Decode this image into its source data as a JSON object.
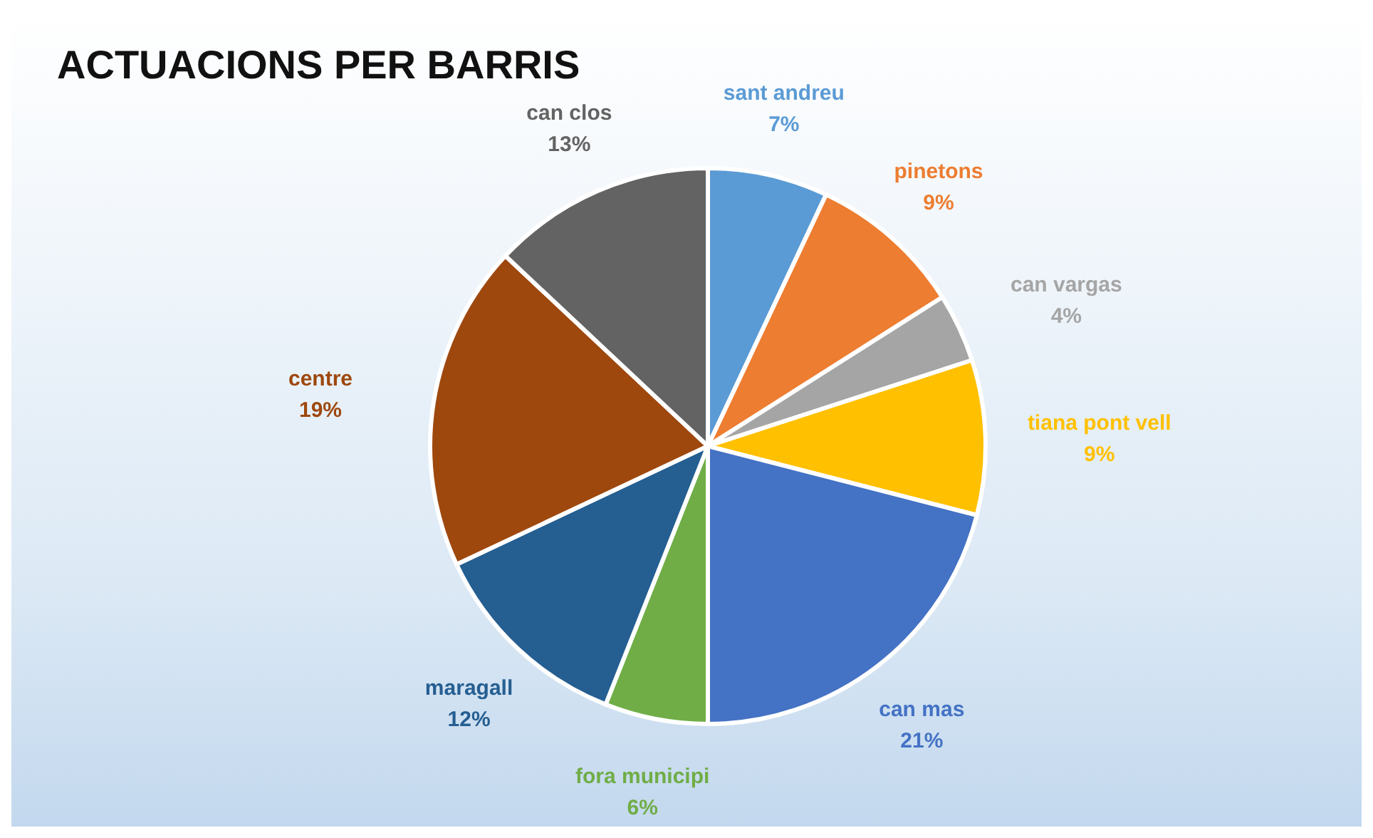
{
  "chart_data": {
    "type": "pie",
    "title": "ACTUACIONS PER BARRIS",
    "categories": [
      "sant andreu",
      "pinetons",
      "can vargas",
      "tiana pont vell",
      "can mas",
      "fora municipi",
      "maragall",
      "centre",
      "can clos"
    ],
    "values": [
      7,
      9,
      4,
      9,
      21,
      6,
      12,
      19,
      13
    ],
    "value_labels": [
      "7%",
      "9%",
      "4%",
      "9%",
      "21%",
      "6%",
      "12%",
      "19%",
      "13%"
    ],
    "colors": [
      "#5b9bd5",
      "#ed7d31",
      "#a5a5a5",
      "#ffc000",
      "#4472c4",
      "#70ad47",
      "#255e91",
      "#9e480e",
      "#636363"
    ],
    "legend": false
  }
}
